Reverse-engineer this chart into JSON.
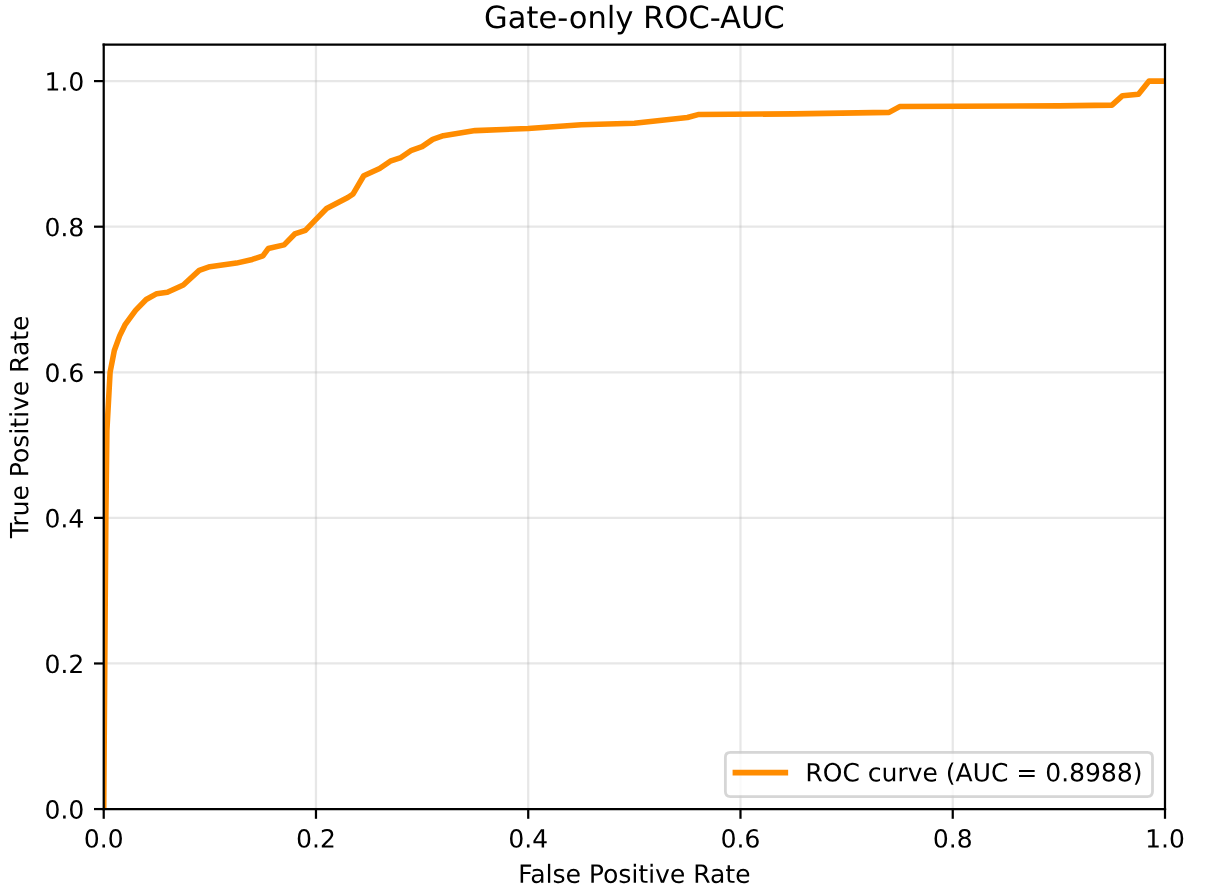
{
  "chart_data": {
    "type": "line",
    "title": "Gate-only ROC-AUC",
    "xlabel": "False Positive Rate",
    "ylabel": "True Positive Rate",
    "xlim": [
      0.0,
      1.0
    ],
    "ylim": [
      0.0,
      1.05
    ],
    "xticks": [
      {
        "value": 0,
        "label": "0.0"
      },
      0.2,
      0.4,
      0.6,
      0.8,
      {
        "value": 1,
        "label": "1.0"
      }
    ],
    "yticks": [
      {
        "value": 0,
        "label": "0.0"
      },
      0.2,
      0.4,
      0.6,
      0.8,
      {
        "value": 1,
        "label": "1.0"
      }
    ],
    "grid": true,
    "legend": "bottom right",
    "line_style": "solid",
    "series": [
      {
        "name": "ROC curve (AUC = 0.8988)",
        "color": "#ff8c00",
        "x": [
          0,
          0.001,
          0.002,
          0.003,
          0.006,
          0.01,
          0.015,
          0.02,
          0.03,
          0.04,
          0.05,
          0.06,
          0.075,
          0.09,
          0.1,
          0.125,
          0.14,
          0.15,
          0.155,
          0.17,
          0.18,
          0.19,
          0.2,
          0.21,
          0.23,
          0.235,
          0.245,
          0.26,
          0.27,
          0.28,
          0.29,
          0.3,
          0.31,
          0.32,
          0.35,
          0.4,
          0.45,
          0.5,
          0.55,
          0.56,
          0.65,
          0.74,
          0.75,
          0.9,
          0.95,
          0.96,
          0.975,
          0.985,
          1.0
        ],
        "values": [
          0,
          0.2,
          0.4,
          0.52,
          0.6,
          0.63,
          0.65,
          0.665,
          0.685,
          0.7,
          0.708,
          0.71,
          0.72,
          0.74,
          0.745,
          0.75,
          0.755,
          0.76,
          0.77,
          0.775,
          0.79,
          0.795,
          0.81,
          0.825,
          0.84,
          0.845,
          0.87,
          0.88,
          0.89,
          0.895,
          0.905,
          0.91,
          0.92,
          0.925,
          0.932,
          0.935,
          0.94,
          0.942,
          0.95,
          0.954,
          0.955,
          0.957,
          0.965,
          0.966,
          0.967,
          0.98,
          0.982,
          1.0,
          1.0
        ]
      }
    ]
  }
}
